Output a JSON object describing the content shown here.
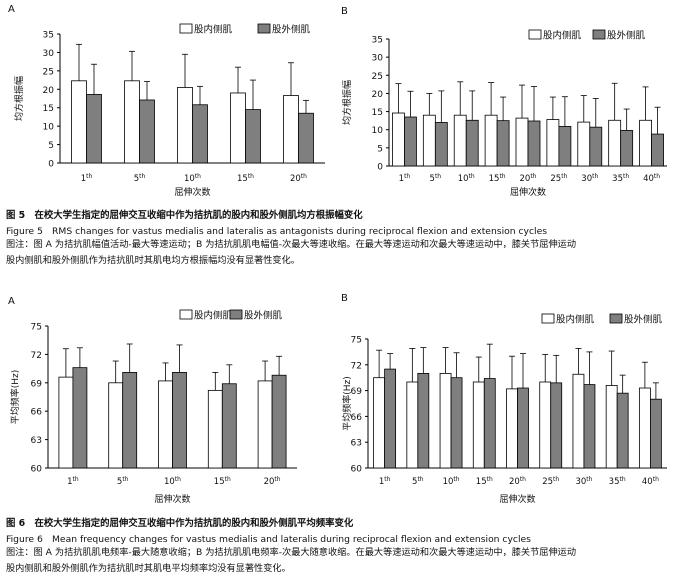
{
  "figures": [
    {
      "title": "图 5　在校大学生指定的屈伸交互收缩中作为拮抗肌的股内和股外侧肌均方根振幅变化",
      "title_en": "Figure 5　RMS changes for vastus medialis and lateralis as antagonists during reciprocal flexion and extension cycles",
      "note_line1": "图注：图 A 为拮抗肌幅值活动-最大等速运动；B 为拮抗肌肌电幅值-次最大等速收缩。在最大等速运动和次最大等速运动中，膝关节屈伸运动",
      "note_line2": "股内侧肌和股外侧肌作为拮抗肌时其肌电均方根振幅均没有显著性变化。"
    },
    {
      "title": "图 6　在校大学生指定的屈伸交互收缩中作为拮抗肌的股内和股外侧肌平均频率变化",
      "title_en": "Figure 6　Mean frequency changes for vastus medialis and lateralis during reciprocal flexion and extension cycles",
      "note_line1": "图注：图 A 为拮抗肌肌电频率-最大随意收缩；B 为拮抗肌肌电频率-次最大随意收缩。在最大等速运动和次最大等速运动中，膝关节屈伸运动",
      "note_line2": "股内侧肌和股外侧肌作为拮抗肌时其肌电平均频率均没有显著性变化。"
    }
  ],
  "colors": {
    "medialis": "#ffffff",
    "lateralis": "#7f7f7f",
    "axis": "#000000"
  },
  "chart_data": [
    {
      "type": "bar",
      "panel": "A",
      "ylabel": "均方根振幅",
      "xlabel": "屈伸次数",
      "ylim": [
        0,
        35
      ],
      "yticks": [
        0,
        5,
        10,
        15,
        20,
        25,
        30,
        35
      ],
      "legend": "top-right",
      "categories": [
        "1th",
        "5th",
        "10th",
        "15th",
        "20th"
      ],
      "series": [
        {
          "name": "股内侧肌",
          "values": [
            22.3,
            22.3,
            20.5,
            19.0,
            18.3
          ],
          "errors": [
            9.9,
            8.0,
            9.0,
            7.0,
            8.9
          ]
        },
        {
          "name": "股外侧肌",
          "values": [
            18.6,
            17.1,
            15.8,
            14.5,
            13.5
          ],
          "errors": [
            8.2,
            5.0,
            5.0,
            8.0,
            3.5
          ]
        }
      ]
    },
    {
      "type": "bar",
      "panel": "B",
      "ylabel": "均方根振幅",
      "xlabel": "屈伸次数",
      "ylim": [
        0,
        35
      ],
      "yticks": [
        0,
        5,
        10,
        15,
        20,
        25,
        30,
        35
      ],
      "legend": "top-right",
      "categories": [
        "1th",
        "5th",
        "10th",
        "15th",
        "20th",
        "25th",
        "30th",
        "35th",
        "40th"
      ],
      "series": [
        {
          "name": "股内侧肌",
          "values": [
            14.6,
            14.0,
            14.0,
            14.0,
            13.2,
            12.8,
            12.1,
            12.6,
            12.6
          ],
          "errors": [
            8.1,
            6.0,
            9.2,
            9.0,
            9.1,
            6.2,
            7.3,
            10.2,
            9.2
          ]
        },
        {
          "name": "股外侧肌",
          "values": [
            13.5,
            12.0,
            12.6,
            12.5,
            12.4,
            10.9,
            10.7,
            9.8,
            8.8
          ],
          "errors": [
            7.1,
            8.7,
            8.1,
            6.5,
            9.5,
            8.2,
            7.9,
            5.9,
            7.4
          ]
        }
      ]
    },
    {
      "type": "bar",
      "panel": "A",
      "ylabel": "平均频率(Hz)",
      "xlabel": "屈伸次数",
      "ylim": [
        60,
        75
      ],
      "yticks": [
        60,
        63,
        66,
        69,
        72,
        75
      ],
      "legend": "top-right",
      "categories": [
        "1th",
        "5th",
        "10th",
        "15th",
        "20th"
      ],
      "series": [
        {
          "name": "股内侧肌",
          "values": [
            69.6,
            69.0,
            69.2,
            68.2,
            69.2
          ],
          "errors": [
            3.0,
            2.3,
            1.9,
            1.9,
            2.1
          ]
        },
        {
          "name": "股外侧肌",
          "values": [
            70.6,
            70.1,
            70.1,
            68.9,
            69.8
          ],
          "errors": [
            2.1,
            3.0,
            2.9,
            2.0,
            2.0
          ]
        }
      ]
    },
    {
      "type": "bar",
      "panel": "B",
      "ylabel": "平均频率(Hz)",
      "xlabel": "屈伸次数",
      "ylim": [
        60,
        75
      ],
      "yticks": [
        60,
        63,
        66,
        69,
        72,
        75
      ],
      "legend": "top-right",
      "categories": [
        "1th",
        "5th",
        "10th",
        "15th",
        "20th",
        "25th",
        "30th",
        "35th",
        "40th"
      ],
      "series": [
        {
          "name": "股内侧肌",
          "values": [
            70.5,
            70.0,
            71.0,
            70.0,
            69.2,
            70.0,
            70.9,
            69.6,
            69.3
          ],
          "errors": [
            3.2,
            3.9,
            3.0,
            2.9,
            3.8,
            3.2,
            3.0,
            4.0,
            3.0
          ]
        },
        {
          "name": "股外侧肌",
          "values": [
            71.5,
            71.0,
            70.5,
            70.4,
            69.3,
            69.9,
            69.7,
            68.7,
            68.0
          ],
          "errors": [
            1.8,
            3.0,
            2.9,
            4.0,
            4.0,
            3.2,
            3.8,
            2.1,
            1.9
          ]
        }
      ]
    }
  ]
}
